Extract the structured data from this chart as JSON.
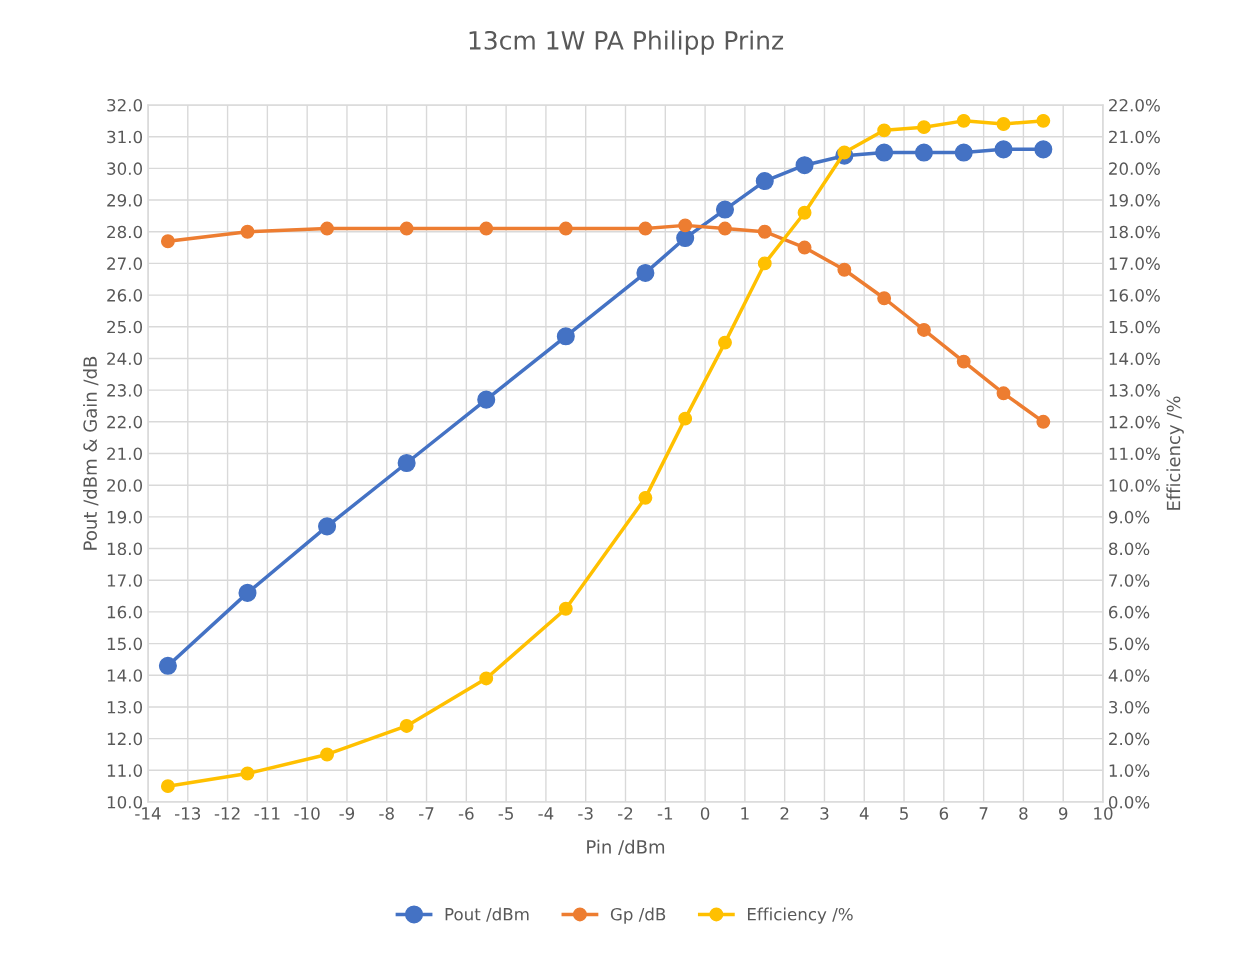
{
  "chart_data": {
    "type": "line",
    "title": "13cm 1W PA Philipp Prinz",
    "xlabel": "Pin /dBm",
    "ylabel": "Pout /dBm & Gain /dB",
    "y2label": "Efficiency /%",
    "x": [
      -13.5,
      -11.5,
      -9.5,
      -7.5,
      -5.5,
      -3.5,
      -1.5,
      -0.5,
      0.5,
      1.5,
      2.5,
      3.5,
      4.5,
      5.5,
      6.5,
      7.5,
      8.5
    ],
    "series": [
      {
        "name": "Pout /dBm",
        "color": "#4472c4",
        "values": [
          14.3,
          16.6,
          18.7,
          20.7,
          22.7,
          24.7,
          26.7,
          27.8,
          28.7,
          29.6,
          30.1,
          30.4,
          30.5,
          30.5,
          30.5,
          30.6,
          30.6
        ]
      },
      {
        "name": "Gp /dB",
        "color": "#ed7d31",
        "values": [
          27.7,
          28.0,
          28.1,
          28.1,
          28.1,
          28.1,
          28.1,
          28.2,
          28.1,
          28.0,
          27.5,
          26.8,
          25.9,
          24.9,
          23.9,
          22.9,
          22.0
        ]
      },
      {
        "name": "Efficiency /%",
        "color": "#ffc000",
        "axis": "y2",
        "values": [
          0.5,
          0.9,
          1.5,
          2.4,
          3.9,
          6.1,
          9.6,
          12.1,
          14.5,
          17.0,
          18.6,
          20.5,
          21.2,
          21.3,
          21.5,
          21.4,
          21.5
        ]
      }
    ],
    "xlim": [
      -14,
      10
    ],
    "xticks": [
      -14,
      -13,
      -12,
      -11,
      -10,
      -9,
      -8,
      -7,
      -6,
      -5,
      -4,
      -3,
      -2,
      -1,
      0,
      1,
      2,
      3,
      4,
      5,
      6,
      7,
      8,
      9,
      10
    ],
    "ylim": [
      10,
      32
    ],
    "yticks": [
      {
        "value": 10,
        "label": "10.0"
      },
      {
        "value": 11,
        "label": "11.0"
      },
      {
        "value": 12,
        "label": "12.0"
      },
      {
        "value": 13,
        "label": "13.0"
      },
      {
        "value": 14,
        "label": "14.0"
      },
      {
        "value": 15,
        "label": "15.0"
      },
      {
        "value": 16,
        "label": "16.0"
      },
      {
        "value": 17,
        "label": "17.0"
      },
      {
        "value": 18,
        "label": "18.0"
      },
      {
        "value": 19,
        "label": "19.0"
      },
      {
        "value": 20,
        "label": "20.0"
      },
      {
        "value": 21,
        "label": "21.0"
      },
      {
        "value": 22,
        "label": "22.0"
      },
      {
        "value": 23,
        "label": "23.0"
      },
      {
        "value": 24,
        "label": "24.0"
      },
      {
        "value": 25,
        "label": "25.0"
      },
      {
        "value": 26,
        "label": "26.0"
      },
      {
        "value": 27,
        "label": "27.0"
      },
      {
        "value": 28,
        "label": "28.0"
      },
      {
        "value": 29,
        "label": "29.0"
      },
      {
        "value": 30,
        "label": "30.0"
      },
      {
        "value": 31,
        "label": "31.0"
      },
      {
        "value": 32,
        "label": "32.0"
      }
    ],
    "y2lim": [
      0,
      22
    ],
    "y2ticks": [
      {
        "value": 0,
        "label": "0.0%"
      },
      {
        "value": 1,
        "label": "1.0%"
      },
      {
        "value": 2,
        "label": "2.0%"
      },
      {
        "value": 3,
        "label": "3.0%"
      },
      {
        "value": 4,
        "label": "4.0%"
      },
      {
        "value": 5,
        "label": "5.0%"
      },
      {
        "value": 6,
        "label": "6.0%"
      },
      {
        "value": 7,
        "label": "7.0%"
      },
      {
        "value": 8,
        "label": "8.0%"
      },
      {
        "value": 9,
        "label": "9.0%"
      },
      {
        "value": 10,
        "label": "10.0%"
      },
      {
        "value": 11,
        "label": "11.0%"
      },
      {
        "value": 12,
        "label": "12.0%"
      },
      {
        "value": 13,
        "label": "13.0%"
      },
      {
        "value": 14,
        "label": "14.0%"
      },
      {
        "value": 15,
        "label": "15.0%"
      },
      {
        "value": 16,
        "label": "16.0%"
      },
      {
        "value": 17,
        "label": "17.0%"
      },
      {
        "value": 18,
        "label": "18.0%"
      },
      {
        "value": 19,
        "label": "19.0%"
      },
      {
        "value": 20,
        "label": "20.0%"
      },
      {
        "value": 21,
        "label": "21.0%"
      },
      {
        "value": 22,
        "label": "22.0%"
      }
    ],
    "grid": true,
    "legend": "bottom",
    "marker": "circle",
    "line_style": "solid"
  }
}
